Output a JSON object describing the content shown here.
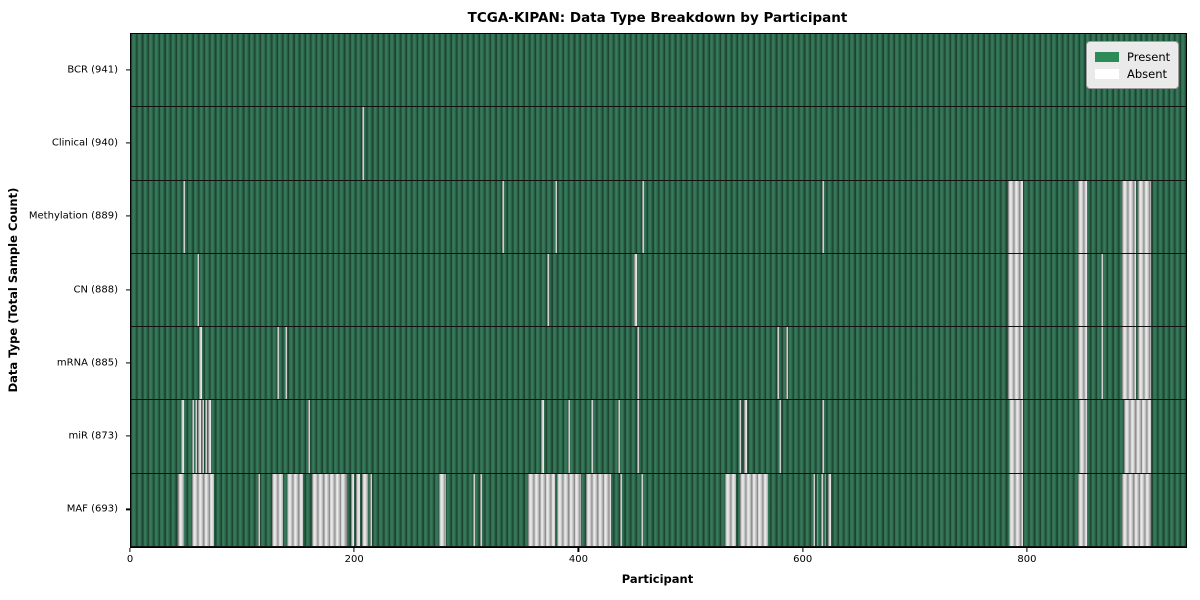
{
  "title": "TCGA-KIPAN: Data Type Breakdown by Participant",
  "xlabel": "Participant",
  "ylabel": "Data Type (Total Sample Count)",
  "legend": {
    "present_label": "Present",
    "absent_label": "Absent"
  },
  "colors": {
    "present": "#2e8b57",
    "absent": "#ffffff",
    "row_green_dark": "#1d4532",
    "absent_gray": "#c8c8c8"
  },
  "chart_data": {
    "type": "heatmap",
    "title": "TCGA-KIPAN: Data Type Breakdown by Participant",
    "xlabel": "Participant",
    "ylabel": "Data Type (Total Sample Count)",
    "legend_entries": [
      "Present",
      "Absent"
    ],
    "legend_position": "upper right",
    "grid": false,
    "x_axis": {
      "range": [
        0,
        941
      ],
      "ticks": [
        0,
        200,
        400,
        600,
        800
      ],
      "tick_labels": [
        "0",
        "200",
        "400",
        "600",
        "800"
      ]
    },
    "rows": [
      {
        "data_type": "BCR",
        "label": "BCR (941)",
        "total": 941,
        "absent_ranges": []
      },
      {
        "data_type": "Clinical",
        "label": "Clinical (940)",
        "total": 940,
        "absent_ranges": [
          [
            206,
            208
          ]
        ]
      },
      {
        "data_type": "Methylation",
        "label": "Methylation (889)",
        "total": 889,
        "absent_ranges": [
          [
            46,
            48
          ],
          [
            331,
            333
          ],
          [
            378,
            380
          ],
          [
            456,
            458
          ],
          [
            616,
            618
          ],
          [
            782,
            796
          ],
          [
            845,
            853
          ],
          [
            884,
            896
          ],
          [
            898,
            910
          ]
        ]
      },
      {
        "data_type": "CN",
        "label": "CN (888)",
        "total": 888,
        "absent_ranges": [
          [
            59,
            61
          ],
          [
            371,
            373
          ],
          [
            449,
            451
          ],
          [
            782,
            796
          ],
          [
            845,
            853
          ],
          [
            865,
            867
          ],
          [
            884,
            896
          ],
          [
            898,
            910
          ]
        ]
      },
      {
        "data_type": "mRNA",
        "label": "mRNA (885)",
        "total": 885,
        "absent_ranges": [
          [
            61,
            63
          ],
          [
            130,
            132
          ],
          [
            137,
            139
          ],
          [
            451,
            453
          ],
          [
            576,
            578
          ],
          [
            584,
            586
          ],
          [
            782,
            796
          ],
          [
            845,
            853
          ],
          [
            865,
            867
          ],
          [
            884,
            896
          ],
          [
            898,
            910
          ]
        ]
      },
      {
        "data_type": "miR",
        "label": "miR (873)",
        "total": 873,
        "absent_ranges": [
          [
            45,
            47
          ],
          [
            54,
            56
          ],
          [
            57,
            59
          ],
          [
            60,
            62
          ],
          [
            63,
            65
          ],
          [
            66,
            68
          ],
          [
            69,
            71
          ],
          [
            158,
            160
          ],
          [
            366,
            368
          ],
          [
            390,
            392
          ],
          [
            410,
            412
          ],
          [
            434,
            436
          ],
          [
            451,
            453
          ],
          [
            542,
            544
          ],
          [
            547,
            549
          ],
          [
            578,
            580
          ],
          [
            616,
            618
          ],
          [
            783,
            796
          ],
          [
            846,
            853
          ],
          [
            886,
            910
          ]
        ]
      },
      {
        "data_type": "MAF",
        "label": "MAF (693)",
        "total": 693,
        "absent_ranges": [
          [
            42,
            47
          ],
          [
            54,
            74
          ],
          [
            113,
            115
          ],
          [
            126,
            136
          ],
          [
            139,
            153
          ],
          [
            161,
            193
          ],
          [
            196,
            199
          ],
          [
            201,
            204
          ],
          [
            206,
            211
          ],
          [
            213,
            215
          ],
          [
            275,
            281
          ],
          [
            305,
            307
          ],
          [
            311,
            313
          ],
          [
            354,
            378
          ],
          [
            380,
            401
          ],
          [
            406,
            428
          ],
          [
            436,
            438
          ],
          [
            455,
            457
          ],
          [
            530,
            540
          ],
          [
            543,
            568
          ],
          [
            608,
            610
          ],
          [
            612,
            613
          ],
          [
            615,
            617
          ],
          [
            619,
            620
          ],
          [
            622,
            624
          ],
          [
            783,
            796
          ],
          [
            845,
            853
          ],
          [
            884,
            910
          ]
        ]
      }
    ]
  }
}
